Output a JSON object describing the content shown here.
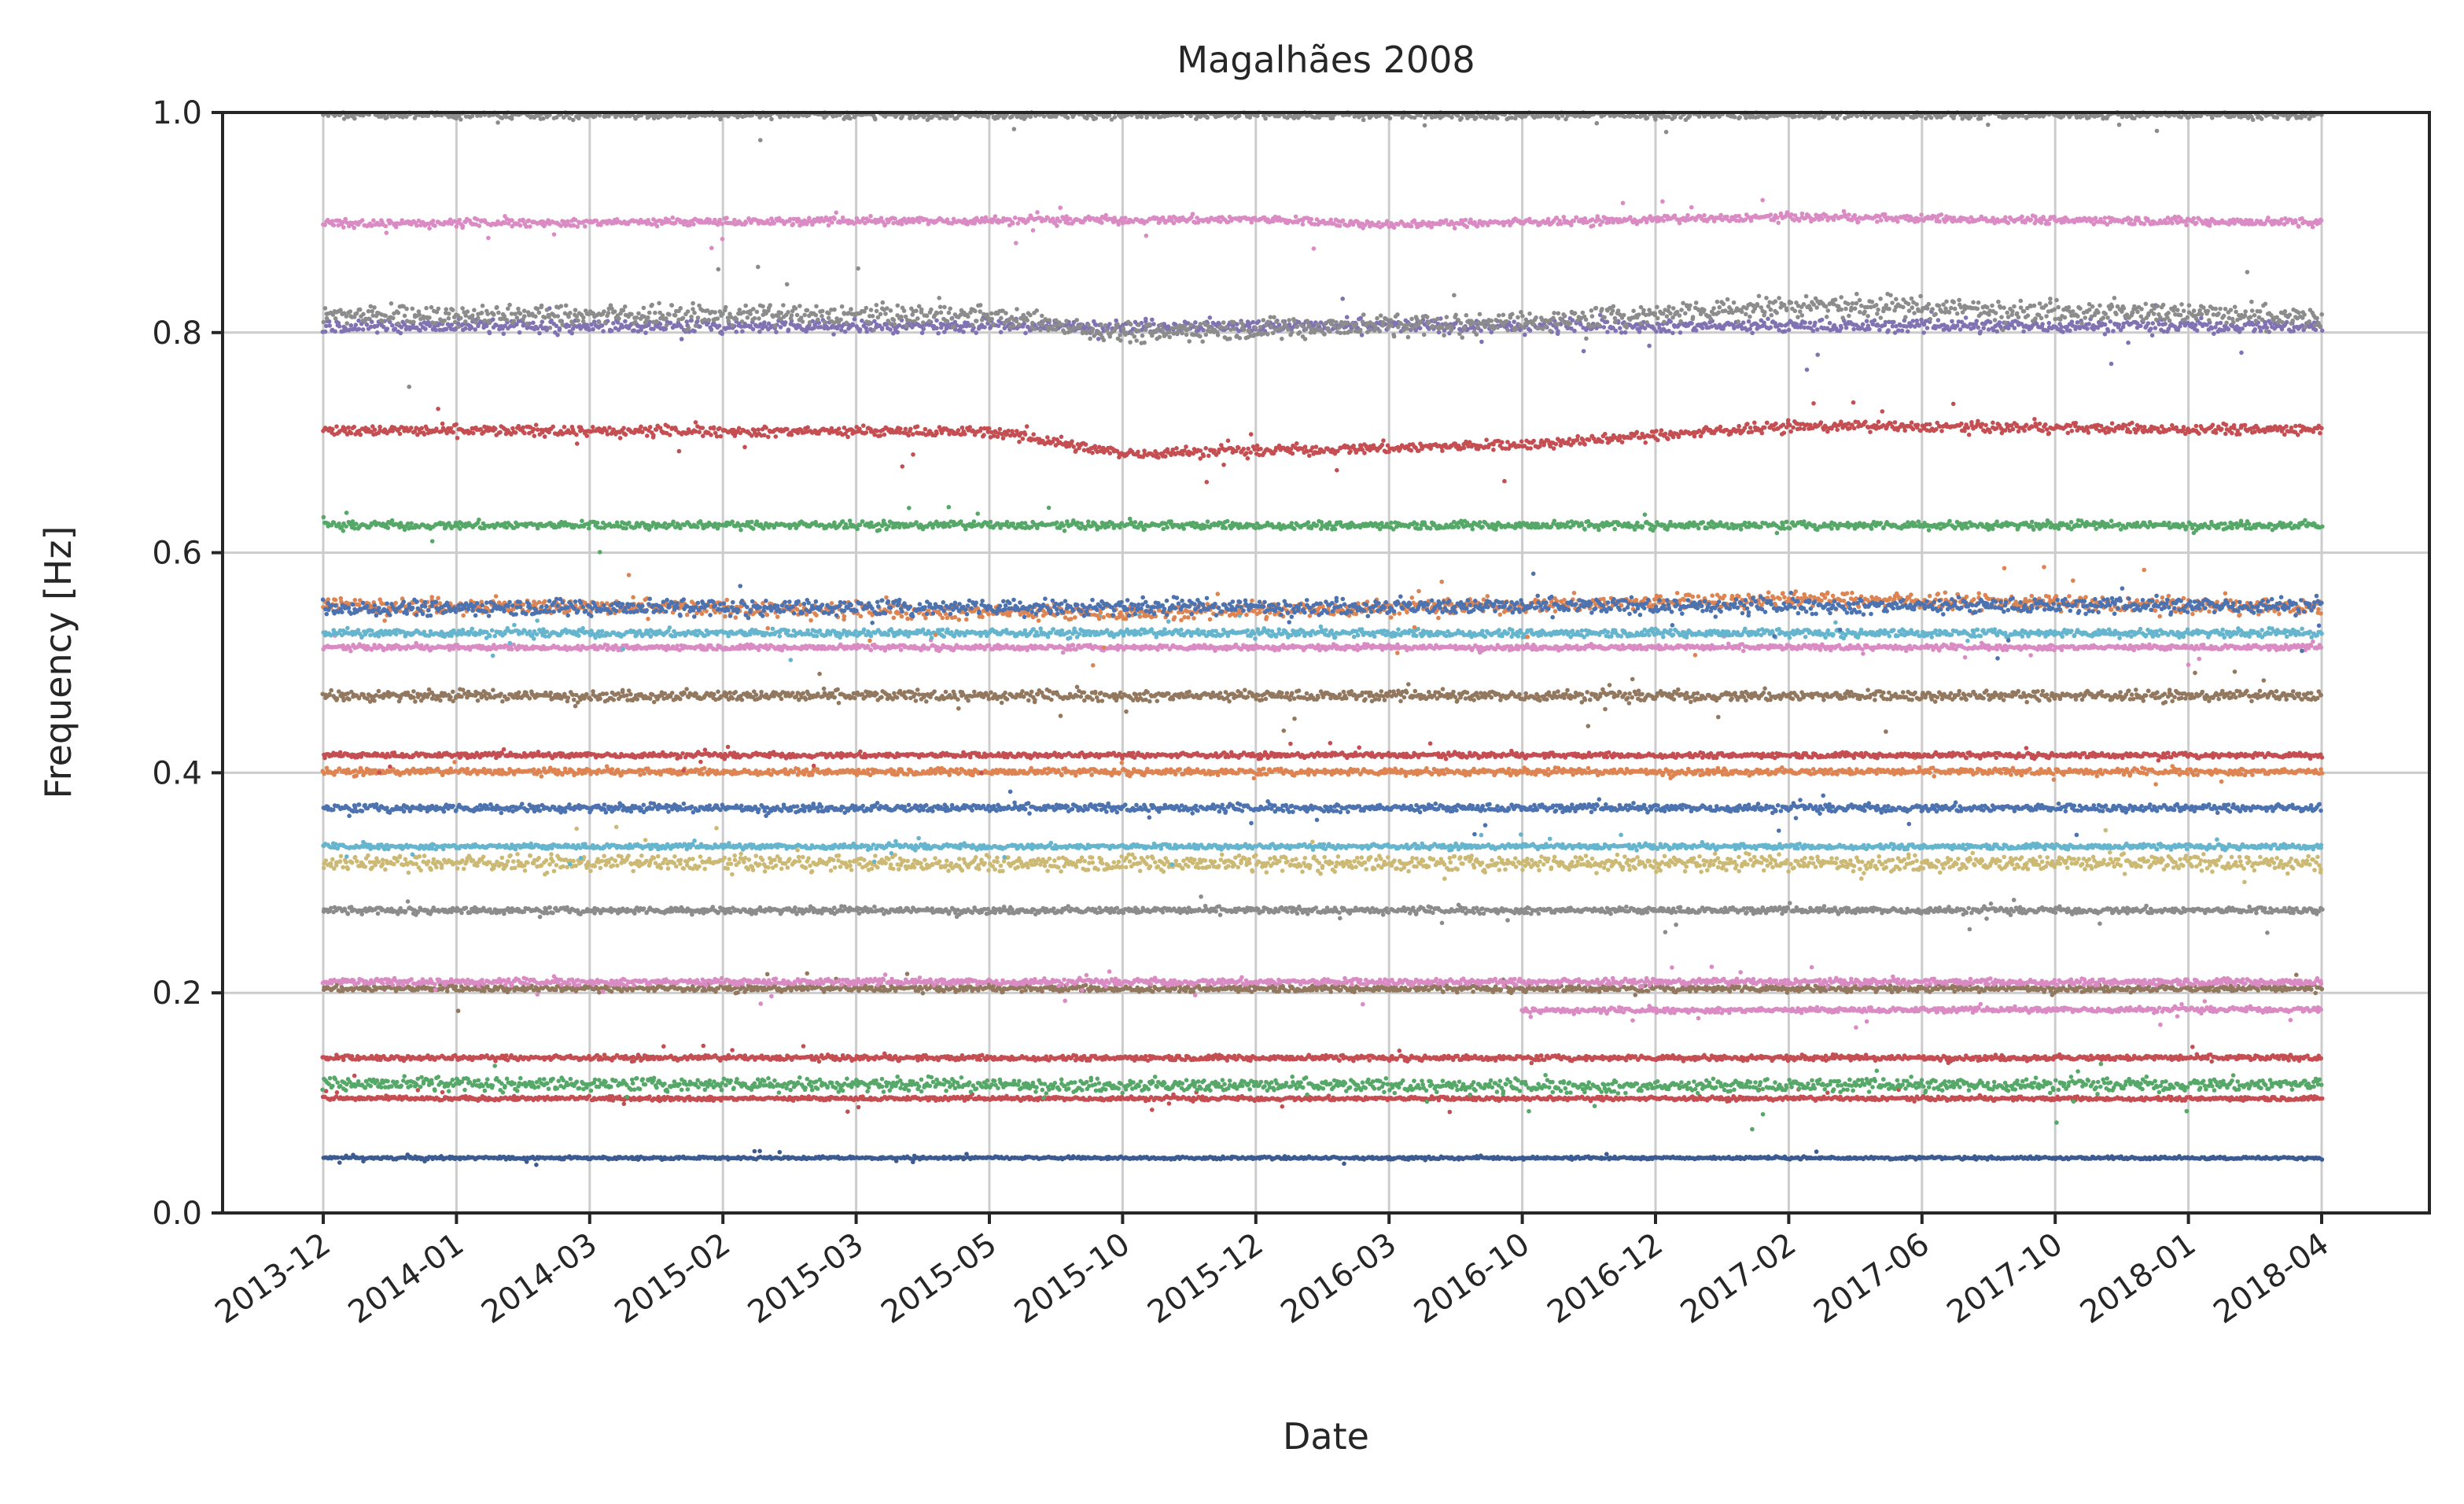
{
  "chart_data": {
    "type": "scatter",
    "title": "Magalhães 2008",
    "xlabel": "Date",
    "ylabel": "Frequency [Hz]",
    "ylim": [
      0.0,
      1.0
    ],
    "y_ticks": [
      "0.0",
      "0.2",
      "0.4",
      "0.6",
      "0.8",
      "1.0"
    ],
    "y_tick_values": [
      0.0,
      0.2,
      0.4,
      0.6,
      0.8,
      1.0
    ],
    "x_ticks": [
      "2013-12",
      "2014-01",
      "2014-03",
      "2015-02",
      "2015-03",
      "2015-05",
      "2015-10",
      "2015-12",
      "2016-03",
      "2016-10",
      "2016-12",
      "2017-02",
      "2017-06",
      "2017-10",
      "2018-01",
      "2018-04"
    ],
    "grid": true,
    "legend": "none",
    "series": [
      {
        "color": "#3b5b92",
        "x": [
          "2013-12",
          "2018-04"
        ],
        "values": [
          0.05,
          0.05
        ],
        "scatter": 0.001
      },
      {
        "color": "#c44e52",
        "x": [
          "2013-12",
          "2018-04"
        ],
        "values": [
          0.104,
          0.104
        ],
        "scatter": 0.0015
      },
      {
        "color": "#55a868",
        "x": [
          "2013-12",
          "2016-12",
          "2017-02",
          "2018-04"
        ],
        "values": [
          0.118,
          0.115,
          0.116,
          0.117
        ],
        "scatter": 0.005
      },
      {
        "color": "#c44e52",
        "x": [
          "2013-12",
          "2018-04"
        ],
        "values": [
          0.141,
          0.141
        ],
        "scatter": 0.002
      },
      {
        "color": "#da8bc3",
        "x": [
          "2016-10",
          "2018-04"
        ],
        "values": [
          0.184,
          0.185
        ],
        "scatter": 0.002
      },
      {
        "color": "#937860",
        "x": [
          "2013-12",
          "2018-04"
        ],
        "values": [
          0.204,
          0.204
        ],
        "scatter": 0.0025
      },
      {
        "color": "#da8bc3",
        "x": [
          "2013-12",
          "2018-04"
        ],
        "values": [
          0.21,
          0.21
        ],
        "scatter": 0.0025
      },
      {
        "color": "#8c8c8c",
        "x": [
          "2013-12",
          "2018-04"
        ],
        "values": [
          0.275,
          0.275
        ],
        "scatter": 0.0025
      },
      {
        "color": "#ccb974",
        "x": [
          "2013-12",
          "2018-04"
        ],
        "values": [
          0.318,
          0.318
        ],
        "scatter": 0.006
      },
      {
        "color": "#64b5cd",
        "x": [
          "2013-12",
          "2018-04"
        ],
        "values": [
          0.333,
          0.333
        ],
        "scatter": 0.002
      },
      {
        "color": "#4c72b0",
        "x": [
          "2013-12",
          "2018-04"
        ],
        "values": [
          0.368,
          0.368
        ],
        "scatter": 0.003
      },
      {
        "color": "#dd8452",
        "x": [
          "2013-12",
          "2018-04"
        ],
        "values": [
          0.401,
          0.401
        ],
        "scatter": 0.0025
      },
      {
        "color": "#c44e52",
        "x": [
          "2013-12",
          "2018-04"
        ],
        "values": [
          0.416,
          0.416
        ],
        "scatter": 0.002
      },
      {
        "color": "#937860",
        "x": [
          "2013-12",
          "2018-04"
        ],
        "values": [
          0.47,
          0.47
        ],
        "scatter": 0.004
      },
      {
        "color": "#da8bc3",
        "x": [
          "2013-12",
          "2018-04"
        ],
        "values": [
          0.514,
          0.514
        ],
        "scatter": 0.002
      },
      {
        "color": "#64b5cd",
        "x": [
          "2013-12",
          "2018-04"
        ],
        "values": [
          0.527,
          0.527
        ],
        "scatter": 0.003
      },
      {
        "color": "#dd8452",
        "x": [
          "2013-12",
          "2015-10",
          "2016-12",
          "2017-02",
          "2018-04"
        ],
        "values": [
          0.553,
          0.545,
          0.555,
          0.558,
          0.55
        ],
        "scatter": 0.006
      },
      {
        "color": "#4c72b0",
        "x": [
          "2013-12",
          "2018-04"
        ],
        "values": [
          0.55,
          0.552
        ],
        "scatter": 0.006
      },
      {
        "color": "#55a868",
        "x": [
          "2013-12",
          "2018-04"
        ],
        "values": [
          0.625,
          0.625
        ],
        "scatter": 0.003
      },
      {
        "color": "#c44e52",
        "x": [
          "2013-12",
          "2015-05",
          "2015-10",
          "2016-10",
          "2017-02",
          "2018-04"
        ],
        "values": [
          0.711,
          0.71,
          0.69,
          0.698,
          0.715,
          0.712
        ],
        "scatter": 0.004
      },
      {
        "color": "#8172b3",
        "x": [
          "2013-12",
          "2018-04"
        ],
        "values": [
          0.806,
          0.806
        ],
        "scatter": 0.005
      },
      {
        "color": "#8c8c8c",
        "x": [
          "2013-12",
          "2015-05",
          "2015-10",
          "2016-10",
          "2017-02",
          "2018-01",
          "2018-04"
        ],
        "values": [
          0.816,
          0.816,
          0.8,
          0.81,
          0.825,
          0.818,
          0.812
        ],
        "scatter": 0.008
      },
      {
        "color": "#da8bc3",
        "x": [
          "2013-12",
          "2015-12",
          "2016-03",
          "2017-02",
          "2018-04"
        ],
        "values": [
          0.899,
          0.903,
          0.898,
          0.905,
          0.9
        ],
        "scatter": 0.003
      },
      {
        "color": "#8c8c8c",
        "x": [
          "2013-12",
          "2018-04"
        ],
        "values": [
          0.998,
          0.998
        ],
        "scatter": 0.003
      }
    ]
  }
}
